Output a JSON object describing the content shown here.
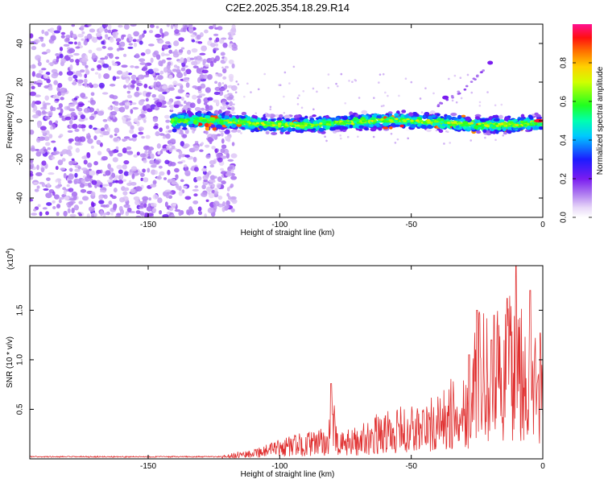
{
  "title": "C2E2.2025.354.18.29.R14",
  "chart_data": [
    {
      "type": "heatmap",
      "title": "C2E2.2025.354.18.29.R14",
      "xlabel": "Height of straight line (km)",
      "ylabel": "Frequency (Hz)",
      "xlim": [
        -195,
        0
      ],
      "ylim": [
        -50,
        50
      ],
      "x_ticks": [
        "-150",
        "-100",
        "-50",
        "0"
      ],
      "x_tick_values": [
        -150,
        -100,
        -50,
        0
      ],
      "y_ticks": [
        "-40",
        "-20",
        "0",
        "20",
        "40"
      ],
      "y_tick_values": [
        -40,
        -20,
        0,
        20,
        40
      ],
      "colorbar": {
        "label": "Normalized spectral amplitude",
        "ticks": [
          "0.0",
          "0.2",
          "0.4",
          "0.6",
          "0.8"
        ],
        "tick_values": [
          0.0,
          0.2,
          0.4,
          0.6,
          0.8
        ],
        "range": [
          0,
          1
        ]
      },
      "features": {
        "noise_region_x": [
          -195,
          -123
        ],
        "band_x": [
          -145,
          0
        ],
        "band_center_hz": -1,
        "band_halfwidth_hz": 3,
        "branch": [
          [
            -40,
            8
          ],
          [
            -30,
            16
          ],
          [
            -20,
            30
          ]
        ]
      }
    },
    {
      "type": "line",
      "xlabel": "Height of straight line (km)",
      "ylabel": "SNR (10 * v/v)",
      "multiplier_label": "(x10",
      "multiplier_exp": "4",
      "multiplier_close": ")",
      "xlim": [
        -195,
        0
      ],
      "ylim": [
        0,
        1.95
      ],
      "x_ticks": [
        "-150",
        "-100",
        "-50",
        "0"
      ],
      "x_tick_values": [
        -150,
        -100,
        -50,
        0
      ],
      "y_ticks": [
        "0.5",
        "1.0",
        "1.5"
      ],
      "y_tick_values": [
        0.5,
        1.0,
        1.5
      ],
      "series_color": "#e03030",
      "envelope": [
        [
          -195,
          0.02
        ],
        [
          -130,
          0.02
        ],
        [
          -122,
          0.03
        ],
        [
          -115,
          0.08
        ],
        [
          -105,
          0.15
        ],
        [
          -95,
          0.25
        ],
        [
          -88,
          0.28
        ],
        [
          -82,
          0.32
        ],
        [
          -80,
          0.75
        ],
        [
          -78,
          0.25
        ],
        [
          -70,
          0.35
        ],
        [
          -60,
          0.5
        ],
        [
          -50,
          0.55
        ],
        [
          -40,
          0.65
        ],
        [
          -32,
          0.9
        ],
        [
          -27,
          1.05
        ],
        [
          -25,
          1.5
        ],
        [
          -20,
          1.45
        ],
        [
          -13,
          1.6
        ],
        [
          -10,
          1.95
        ],
        [
          -7,
          1.7
        ],
        [
          -5,
          1.4
        ],
        [
          -2,
          1.25
        ],
        [
          0,
          1.1
        ]
      ],
      "peaks": [
        [
          -80.5,
          0.76
        ],
        [
          -25,
          1.5
        ],
        [
          -18.5,
          1.45
        ],
        [
          -13.5,
          1.62
        ],
        [
          -10.2,
          1.95
        ],
        [
          -4.8,
          1.7
        ],
        [
          -1,
          1.27
        ],
        [
          -19.5,
          1.2
        ],
        [
          -28,
          1.05
        ]
      ]
    }
  ]
}
